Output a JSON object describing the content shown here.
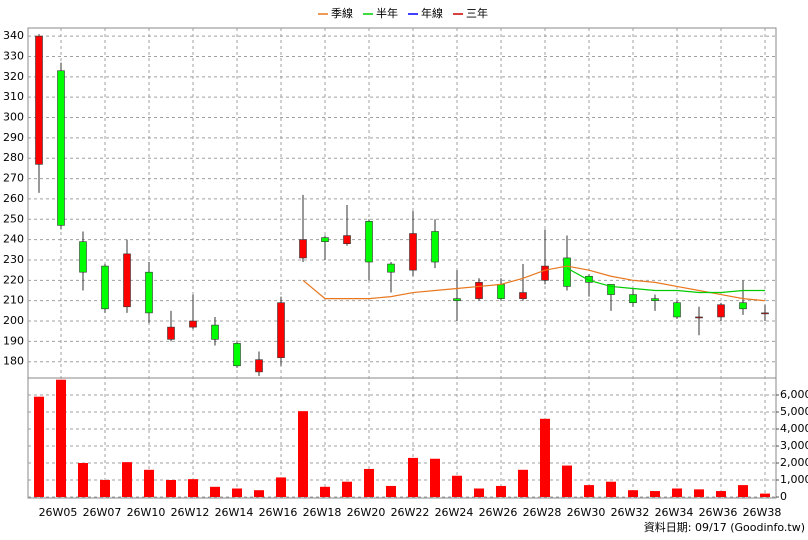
{
  "chart_data": {
    "type": "candlestick",
    "categories": [
      null,
      "26W05",
      null,
      "26W07",
      null,
      "26W10",
      null,
      "26W12",
      null,
      "26W14",
      null,
      "26W16",
      null,
      "26W18",
      null,
      "26W20",
      null,
      "26W22",
      null,
      "26W24",
      null,
      "26W26",
      null,
      "26W28",
      null,
      "26W30",
      null,
      "26W32",
      null,
      "26W34",
      null,
      "26W36",
      null,
      "26W38"
    ],
    "open": [
      277,
      323,
      239,
      227,
      207,
      224,
      191,
      197,
      198,
      189,
      175,
      182,
      231,
      241,
      238,
      249,
      228,
      225,
      244,
      211,
      211,
      218,
      211,
      220,
      231,
      222,
      218,
      213,
      211,
      209,
      202,
      202,
      209,
      204
    ],
    "high": [
      341,
      327,
      244,
      228,
      240,
      229,
      205,
      213,
      202,
      190,
      185,
      212,
      262,
      242,
      257,
      250,
      229,
      254,
      250,
      225,
      221,
      221,
      228,
      245,
      242,
      223,
      218,
      216,
      213,
      210,
      207,
      209,
      220,
      208
    ],
    "low": [
      263,
      245,
      215,
      204,
      204,
      199,
      190,
      196,
      188,
      177,
      173,
      178,
      229,
      230,
      237,
      220,
      214,
      222,
      226,
      200,
      210,
      210,
      210,
      218,
      215,
      212,
      205,
      207,
      205,
      201,
      193,
      200,
      203,
      200
    ],
    "close": [
      340,
      247,
      224,
      206,
      233,
      204,
      197,
      200,
      191,
      178,
      181,
      209,
      240,
      239,
      242,
      229,
      224,
      243,
      229,
      210,
      219,
      211,
      214,
      227,
      217,
      219,
      213,
      209,
      210,
      202,
      202,
      208,
      206,
      204
    ],
    "up_color": "#ff0000",
    "down_color": "#00ff00",
    "ylim": [
      172,
      344
    ],
    "yticks": [
      180,
      190,
      200,
      210,
      220,
      230,
      240,
      250,
      260,
      270,
      280,
      290,
      300,
      310,
      320,
      330,
      340
    ],
    "grid": true,
    "legend": "top",
    "series": [
      {
        "name": "季線",
        "color": "#e8771e",
        "values": [
          null,
          null,
          null,
          null,
          null,
          null,
          null,
          null,
          null,
          null,
          null,
          null,
          220,
          211,
          211,
          211,
          212,
          214,
          215,
          216,
          217,
          218,
          221,
          225,
          227,
          225,
          222,
          220,
          219,
          217,
          215,
          213,
          211,
          210
        ]
      },
      {
        "name": "半年",
        "color": "#00cc00",
        "values": [
          null,
          null,
          null,
          null,
          null,
          null,
          null,
          null,
          null,
          null,
          null,
          null,
          null,
          null,
          null,
          null,
          null,
          null,
          null,
          null,
          null,
          null,
          null,
          null,
          226,
          220,
          217,
          216,
          215,
          215,
          214,
          214,
          215,
          215
        ]
      },
      {
        "name": "年線",
        "color": "#0000ff",
        "values": [
          null,
          null,
          null,
          null,
          null,
          null,
          null,
          null,
          null,
          null,
          null,
          null,
          null,
          null,
          null,
          null,
          null,
          null,
          null,
          null,
          null,
          null,
          null,
          null,
          null,
          null,
          null,
          null,
          null,
          null,
          null,
          null,
          null,
          null
        ]
      },
      {
        "name": "三年",
        "color": "#cc0000",
        "values": [
          null,
          null,
          null,
          null,
          null,
          null,
          null,
          null,
          null,
          null,
          null,
          null,
          null,
          null,
          null,
          null,
          null,
          null,
          null,
          null,
          null,
          null,
          null,
          null,
          null,
          null,
          null,
          null,
          null,
          null,
          null,
          null,
          null,
          null
        ]
      }
    ],
    "volume": {
      "values": [
        5900,
        6900,
        2000,
        1000,
        2050,
        1600,
        1000,
        1050,
        600,
        500,
        400,
        1150,
        5050,
        600,
        900,
        1650,
        650,
        2300,
        2250,
        1250,
        500,
        650,
        1600,
        4600,
        1850,
        700,
        900,
        400,
        350,
        500,
        450,
        350,
        700,
        200
      ],
      "color": "#ff0000",
      "ylim": [
        0,
        7000
      ],
      "yticks": [
        0,
        {
          "value": 1000,
          "label": "1,000"
        },
        {
          "value": 2000,
          "label": "2,000"
        },
        {
          "value": 3000,
          "label": "3,000"
        },
        {
          "value": 4000,
          "label": "4,000"
        },
        {
          "value": 5000,
          "label": "5,000"
        },
        {
          "value": 6000,
          "label": "6,000"
        }
      ]
    },
    "source": "資料日期: 09/17  (Goodinfo.tw)"
  }
}
